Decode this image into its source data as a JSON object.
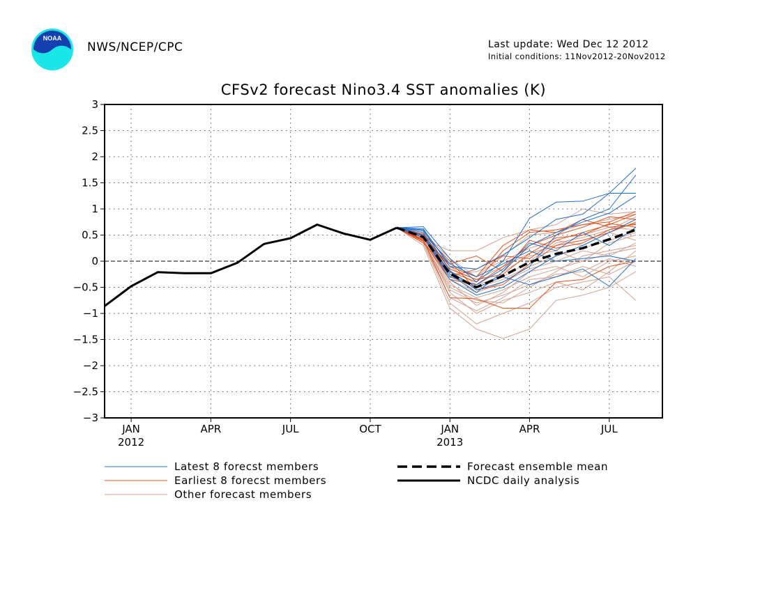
{
  "header": {
    "logo_text": "NOAA",
    "agency": "NWS/NCEP/CPC",
    "last_update": "Last update: Wed Dec 12 2012",
    "initial_conditions": "Initial conditions: 11Nov2012-20Nov2012"
  },
  "colors": {
    "title": "#e00000",
    "latest": "#1f6fd0",
    "earliest": "#e8501a",
    "other": "#d4a090",
    "mean": "#000000",
    "analysis": "#000000",
    "logo_outer": "#19e6e6",
    "logo_inner": "#1540b0"
  },
  "chart_data": {
    "type": "line",
    "title": "CFSv2 forecast Nino3.4 SST anomalies (K)",
    "xlabel": "",
    "ylabel": "",
    "ylim": [
      -3,
      3
    ],
    "yticks": [
      "3",
      "2.5",
      "2",
      "1.5",
      "1",
      "0.5",
      "0",
      "−0.5",
      "−1",
      "−1.5",
      "−2",
      "−2.5",
      "−3"
    ],
    "xticks": [
      {
        "month": "2012-01",
        "label": "JAN",
        "year": "2012"
      },
      {
        "month": "2012-04",
        "label": "APR",
        "year": ""
      },
      {
        "month": "2012-07",
        "label": "JUL",
        "year": ""
      },
      {
        "month": "2012-10",
        "label": "OCT",
        "year": ""
      },
      {
        "month": "2013-01",
        "label": "JAN",
        "year": "2013"
      },
      {
        "month": "2013-04",
        "label": "APR",
        "year": ""
      },
      {
        "month": "2013-07",
        "label": "JUL",
        "year": ""
      }
    ],
    "xlim": [
      "2011-12",
      "2013-09"
    ],
    "grid": true,
    "zero_line": true,
    "legend": [
      {
        "label": "Latest 8 forecst members",
        "key": "latest"
      },
      {
        "label": "Earliest 8 forecst members",
        "key": "earliest"
      },
      {
        "label": "Other forecast members",
        "key": "other"
      },
      {
        "label": "Forecast ensemble mean",
        "key": "mean"
      },
      {
        "label": "NCDC daily analysis",
        "key": "analysis"
      }
    ],
    "forecast_months": [
      "2012-11",
      "2012-12",
      "2013-01",
      "2013-02",
      "2013-03",
      "2013-04",
      "2013-05",
      "2013-06",
      "2013-07",
      "2013-08"
    ],
    "analysis": {
      "months": [
        "2011-12",
        "2012-01",
        "2012-02",
        "2012-03",
        "2012-04",
        "2012-05",
        "2012-06",
        "2012-07",
        "2012-08",
        "2012-09",
        "2012-10",
        "2012-11"
      ],
      "values": [
        -0.86,
        -0.48,
        -0.21,
        -0.23,
        -0.23,
        -0.03,
        0.33,
        0.44,
        0.7,
        0.53,
        0.41,
        0.64
      ]
    },
    "ensemble_mean": {
      "months": [
        "2012-11",
        "2012-12",
        "2013-01",
        "2013-02",
        "2013-03",
        "2013-04",
        "2013-05",
        "2013-06",
        "2013-07",
        "2013-08"
      ],
      "values": [
        0.64,
        0.46,
        -0.24,
        -0.5,
        -0.28,
        -0.02,
        0.14,
        0.25,
        0.42,
        0.6
      ]
    },
    "latest_members": [
      [
        0.64,
        0.66,
        0.05,
        -0.4,
        0.0,
        0.82,
        1.13,
        1.15,
        1.3,
        1.3
      ],
      [
        0.64,
        0.62,
        -0.1,
        -0.15,
        0.12,
        0.45,
        0.8,
        0.9,
        1.3,
        1.78
      ],
      [
        0.64,
        0.55,
        -0.25,
        -0.6,
        -0.2,
        0.3,
        0.55,
        0.75,
        0.92,
        1.25
      ],
      [
        0.64,
        0.6,
        -0.18,
        -0.55,
        -0.4,
        -0.1,
        0.5,
        0.8,
        1.0,
        1.65
      ],
      [
        0.64,
        0.5,
        -0.3,
        -0.45,
        -0.15,
        0.35,
        0.2,
        0.55,
        0.3,
        0.65
      ],
      [
        0.64,
        0.48,
        -0.35,
        -0.65,
        -0.5,
        -0.2,
        0.1,
        0.3,
        0.55,
        0.8
      ],
      [
        0.64,
        0.58,
        -0.05,
        -0.3,
        -0.05,
        0.2,
        0.0,
        0.05,
        0.1,
        0.0
      ],
      [
        0.64,
        0.45,
        -0.2,
        -0.5,
        -0.3,
        -0.45,
        -0.3,
        -0.15,
        -0.48,
        0.05
      ]
    ],
    "earliest_members": [
      [
        0.64,
        0.4,
        -0.7,
        -0.72,
        -0.9,
        -0.9,
        -0.4,
        -0.35,
        -0.1,
        0.0
      ],
      [
        0.64,
        0.35,
        -0.2,
        -0.4,
        0.2,
        0.55,
        0.6,
        0.7,
        0.75,
        0.95
      ],
      [
        0.64,
        0.5,
        -0.1,
        -0.3,
        0.3,
        0.6,
        0.55,
        0.8,
        0.65,
        0.7
      ],
      [
        0.64,
        0.45,
        -0.3,
        -0.15,
        0.1,
        0.05,
        0.4,
        0.55,
        0.7,
        0.9
      ],
      [
        0.64,
        0.42,
        -0.05,
        0.1,
        -0.2,
        0.4,
        0.25,
        0.35,
        0.6,
        0.72
      ],
      [
        0.64,
        0.38,
        -0.35,
        -0.45,
        -0.1,
        0.3,
        0.5,
        0.65,
        0.85,
        0.8
      ],
      [
        0.64,
        0.48,
        -0.15,
        -0.35,
        -0.25,
        0.15,
        0.45,
        0.5,
        0.72,
        0.65
      ],
      [
        0.64,
        0.52,
        0.0,
        -0.55,
        -0.45,
        -0.05,
        0.3,
        0.4,
        0.55,
        0.75
      ]
    ],
    "other_members": [
      [
        0.64,
        0.3,
        -0.9,
        -1.3,
        -1.48,
        -1.3,
        -0.75,
        -0.65,
        -0.5,
        -0.2
      ],
      [
        0.64,
        0.35,
        -0.8,
        -1.2,
        -1.0,
        -0.8,
        -0.5,
        -0.4,
        -0.3,
        -0.75
      ],
      [
        0.64,
        0.4,
        -0.6,
        -1.0,
        -0.75,
        -0.6,
        -0.4,
        -0.55,
        -0.2,
        0.2
      ],
      [
        0.64,
        0.45,
        -0.4,
        -0.85,
        -0.6,
        -0.2,
        -0.1,
        -0.3,
        0.0,
        0.1
      ],
      [
        0.64,
        0.5,
        -0.2,
        -0.6,
        -0.2,
        0.1,
        0.2,
        0.0,
        0.35,
        0.5
      ],
      [
        0.64,
        0.55,
        0.05,
        -0.3,
        0.1,
        0.5,
        0.55,
        0.7,
        0.8,
        0.9
      ],
      [
        0.64,
        0.42,
        0.2,
        0.2,
        0.45,
        0.6,
        0.7,
        1.0,
        0.9,
        0.95
      ],
      [
        0.64,
        0.38,
        -0.5,
        -0.75,
        -0.8,
        -0.5,
        -0.2,
        0.1,
        0.2,
        0.3
      ],
      [
        0.64,
        0.5,
        -0.3,
        -0.5,
        -0.35,
        -0.1,
        0.1,
        0.25,
        0.4,
        0.55
      ],
      [
        0.64,
        0.46,
        -0.1,
        -0.45,
        -0.3,
        0.0,
        0.35,
        0.45,
        0.6,
        0.85
      ],
      [
        0.64,
        0.35,
        -0.7,
        -0.95,
        -0.7,
        -0.35,
        -0.3,
        -0.1,
        -0.25,
        0.0
      ],
      [
        0.64,
        0.48,
        -0.25,
        -0.2,
        0.0,
        0.25,
        0.4,
        0.3,
        0.55,
        0.4
      ],
      [
        0.64,
        0.42,
        -0.45,
        -0.7,
        -0.55,
        -0.3,
        -0.15,
        0.0,
        0.15,
        0.25
      ],
      [
        0.64,
        0.52,
        -0.15,
        -0.35,
        -0.1,
        0.15,
        0.3,
        0.5,
        0.65,
        0.6
      ],
      [
        0.64,
        0.4,
        -0.55,
        -0.8,
        -0.65,
        -0.45,
        -0.25,
        -0.2,
        0.05,
        -0.1
      ],
      [
        0.64,
        0.45,
        -0.35,
        -0.6,
        -0.4,
        -0.15,
        0.0,
        0.2,
        0.1,
        0.35
      ]
    ]
  }
}
